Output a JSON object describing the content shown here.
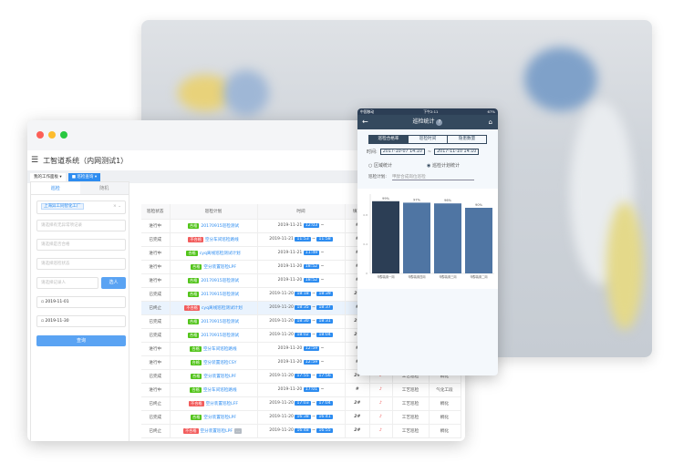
{
  "desktop": {
    "app_title": "工智道系统（内网测试1）",
    "page_tabs": [
      {
        "label": "我的工作面板",
        "active": false
      },
      {
        "label": "巡检查询",
        "active": true
      }
    ],
    "filter": {
      "tabs": [
        "巡检",
        "随机"
      ],
      "factory": "上海异工同智化工厂",
      "abnormal_placeholder": "请选择有无异常项记录",
      "qualified_placeholder": "请选择是否合格",
      "status_placeholder": "请选择巡检状态",
      "recorder_placeholder": "请选择记录人",
      "select_person": "选人",
      "start_date": "2019-11-01",
      "end_date": "2019-11-30",
      "query": "查询"
    },
    "table": {
      "headers": [
        "巡检状态",
        "巡检计划",
        "时间",
        "填写"
      ],
      "rows": [
        {
          "status": "进行中",
          "result": "合格",
          "plan": "20170915巡检测试",
          "date": "2019-11-21",
          "start": "12:03",
          "end": "",
          "c4": "#",
          "c6": "",
          "c7": ""
        },
        {
          "status": "已完成",
          "result": "不合格",
          "plan": "空分车间巡检路线",
          "date": "2019-11-21",
          "start": "11:53",
          "end": "11:58",
          "c4": "#",
          "c6": "",
          "c7": ""
        },
        {
          "status": "进行中",
          "result": "合格",
          "plan": "cyq离线巡检测试计划",
          "date": "2019-11-21",
          "start": "11:49",
          "end": "",
          "c4": "#",
          "c6": "",
          "c7": ""
        },
        {
          "status": "进行中",
          "result": "合格",
          "plan": "空分装置巡检LPF",
          "date": "2019-11-20",
          "start": "18:52",
          "end": "",
          "c4": "#",
          "c6": "",
          "c7": ""
        },
        {
          "status": "进行中",
          "result": "合格",
          "plan": "20170915巡检测试",
          "date": "2019-11-20",
          "start": "18:52",
          "end": "",
          "c4": "#",
          "c6": "",
          "c7": ""
        },
        {
          "status": "已完成",
          "result": "合格",
          "plan": "20170915巡检测试",
          "date": "2019-11-20",
          "start": "18:18",
          "end": "18:39",
          "c4": "2#",
          "c6": "",
          "c7": ""
        },
        {
          "status": "已终止",
          "result": "不合格",
          "plan": "cyq离线巡检测试计划",
          "date": "2019-11-20",
          "start": "18:35",
          "end": "18:37",
          "c4": "#",
          "c6": "",
          "c7": "",
          "hl": true
        },
        {
          "status": "已完成",
          "result": "合格",
          "plan": "20170915巡检测试",
          "date": "2019-11-20",
          "start": "18:30",
          "end": "18:31",
          "c4": "2#",
          "c6": "",
          "c7": ""
        },
        {
          "status": "已完成",
          "result": "合格",
          "plan": "20170915巡检测试",
          "date": "2019-11-20",
          "start": "18:02",
          "end": "18:04",
          "c4": "2#",
          "c6": "",
          "c7": ""
        },
        {
          "status": "进行中",
          "result": "合格",
          "plan": "空分车间巡检路线",
          "date": "2019-11-20",
          "start": "12:59",
          "end": "",
          "c4": "#",
          "c6": "",
          "c7": ""
        },
        {
          "status": "进行中",
          "result": "合格",
          "plan": "空分装置巡检CSY",
          "date": "2019-11-20",
          "start": "12:59",
          "end": "",
          "c4": "#",
          "c6": "",
          "c7": ""
        },
        {
          "status": "已完成",
          "result": "合格",
          "plan": "空分装置巡检LPF",
          "date": "2019-11-20",
          "start": "17:55",
          "end": "17:56",
          "c4": "2#",
          "c6": "工艺巡检",
          "c7": "稠化"
        },
        {
          "status": "进行中",
          "result": "合格",
          "plan": "空分车间巡检路线",
          "date": "2019-11-20",
          "start": "17:01",
          "end": "",
          "c4": "#",
          "c6": "工艺巡检",
          "c7": "气化工段"
        },
        {
          "status": "已终止",
          "result": "不合格",
          "plan": "空分装置巡检LFF",
          "date": "2019-11-20",
          "start": "17:03",
          "end": "17:04",
          "c4": "2#",
          "c6": "工艺巡检",
          "c7": "稠化"
        },
        {
          "status": "已完成",
          "result": "合格",
          "plan": "空分装置巡检LPF",
          "date": "2019-11-20",
          "start": "16:38",
          "end": "16:41",
          "c4": "2#",
          "c6": "工艺巡检",
          "c7": "稠化"
        },
        {
          "status": "已终止",
          "result": "不合格",
          "plan": "空分装置巡检LPF",
          "date": "2019-11-20",
          "start": "16:48",
          "end": "16:55",
          "c4": "2#",
          "c6": "工艺巡检",
          "c7": "稠化",
          "extra": "..."
        }
      ]
    }
  },
  "phone": {
    "status": {
      "carrier": "中国移动",
      "time": "下午2:11",
      "battery": "67%"
    },
    "title": "巡检统计",
    "tabs": [
      {
        "label": "巡检合格率",
        "active": true
      },
      {
        "label": "巡检时间",
        "active": false
      },
      {
        "label": "隐患数量",
        "active": false
      }
    ],
    "time_label": "时间:",
    "start": "2017-10-07 14:10",
    "end": "2017-11-10 14:10",
    "radios": [
      {
        "label": "区域统计",
        "checked": false
      },
      {
        "label": "巡检计划统计",
        "checked": true
      }
    ],
    "plan_label": "巡检计划:",
    "plan_value": "甲醇合成岗位巡检"
  },
  "chart_data": {
    "type": "bar",
    "categories": [
      "甲醇装置一岗",
      "甲醇装置四岗",
      "甲醇装置三岗",
      "甲醇装置二岗"
    ],
    "values": [
      0.99,
      0.97,
      0.96,
      0.9
    ],
    "data_labels": [
      "99%",
      "97%",
      "96%",
      "90%"
    ],
    "yticks": [
      "0",
      "0.4",
      "0.8"
    ],
    "ylim": [
      0,
      1
    ],
    "colors": [
      "#2c3e55",
      "#4f75a3",
      "#4f75a3",
      "#4f75a3"
    ]
  }
}
